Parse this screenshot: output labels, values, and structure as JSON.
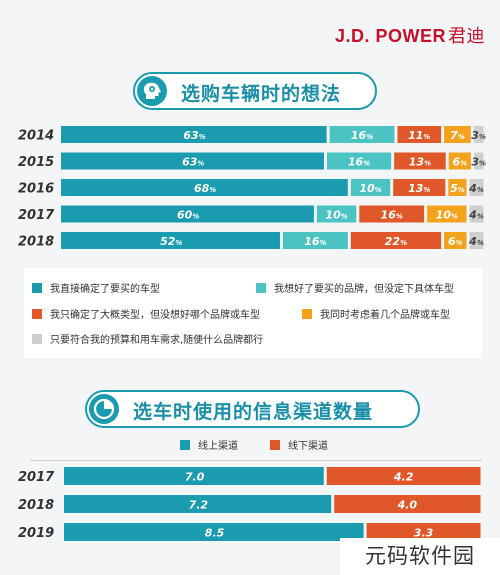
{
  "brand": {
    "name": "J.D. POWER",
    "cn": "君迪"
  },
  "section1": {
    "title": "选购车辆时的想法",
    "icon": "head-brain-icon"
  },
  "section2": {
    "title": "选车时使用的信息渠道数量",
    "icon": "pie-chart-icon"
  },
  "colors": {
    "teal_dark": "#1a9bb0",
    "teal_light": "#4bc3c3",
    "orange_red": "#e0582a",
    "amber": "#f4a21b",
    "gray": "#cfcfcf",
    "title": "#1b8fa8"
  },
  "chart_data": [
    {
      "type": "bar",
      "orientation": "horizontal",
      "stacked": true,
      "normalized": true,
      "categories": [
        "2014",
        "2015",
        "2016",
        "2017",
        "2018"
      ],
      "series": [
        {
          "name": "我直接确定了要买的车型",
          "color": "#1a9bb0",
          "values": [
            63,
            63,
            68,
            60,
            52
          ]
        },
        {
          "name": "我想好了要买的品牌，但没定下具体车型",
          "color": "#4bc3c3",
          "values": [
            16,
            16,
            10,
            10,
            16
          ]
        },
        {
          "name": "我只确定了大概类型，但没想好哪个品牌或车型",
          "color": "#e0582a",
          "values": [
            11,
            13,
            13,
            16,
            22
          ]
        },
        {
          "name": "我同时考虑着几个品牌或车型",
          "color": "#f4a21b",
          "values": [
            7,
            6,
            5,
            10,
            6
          ]
        },
        {
          "name": "只要符合我的预算和用车需求,随便什么品牌都行",
          "color": "#cfcfcf",
          "values": [
            3,
            3,
            4,
            4,
            4
          ]
        }
      ],
      "unit": "%",
      "legend": "bottom"
    },
    {
      "type": "bar",
      "orientation": "horizontal",
      "stacked": true,
      "normalized": true,
      "categories": [
        "2017",
        "2018",
        "2019"
      ],
      "series": [
        {
          "name": "线上渠道",
          "color": "#1a9bb0",
          "values": [
            7.0,
            7.2,
            8.5
          ]
        },
        {
          "name": "线下渠道",
          "color": "#e0582a",
          "values": [
            4.2,
            4.0,
            3.3
          ]
        }
      ],
      "legend": "top"
    }
  ],
  "watermark": "元码软件园"
}
